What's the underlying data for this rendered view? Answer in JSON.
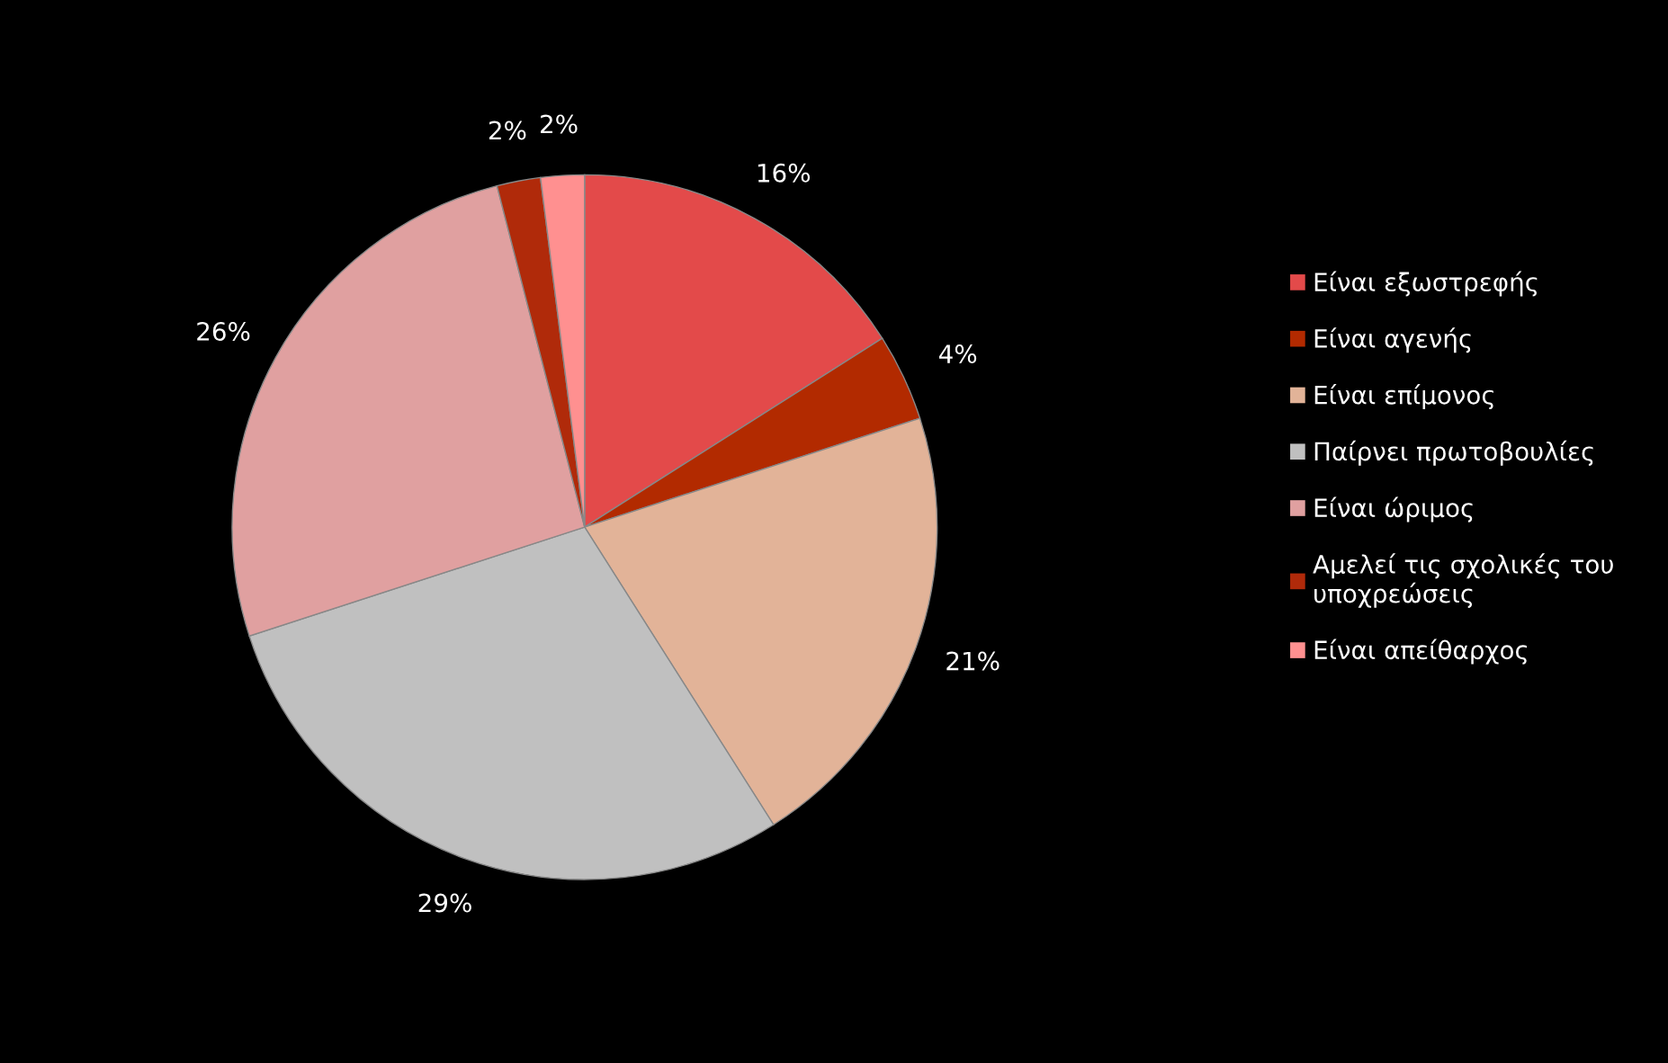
{
  "chart_data": {
    "type": "pie",
    "categories": [
      "Είναι εξωστρεφής",
      "Είναι αγενής",
      "Είναι επίμονος",
      "Παίρνει πρωτοβουλίες",
      "Είναι ώριμος",
      "Αμελεί τις σχολικές του\nυποχρεώσεις",
      "Είναι απείθαρχος"
    ],
    "values": [
      16,
      4,
      21,
      29,
      26,
      2,
      2
    ],
    "colors": [
      "#e34a4a",
      "#b22a00",
      "#e2b398",
      "#c0c0c0",
      "#e0a0a0",
      "#b02a0a",
      "#ff9090"
    ],
    "value_labels": [
      "16%",
      "4%",
      "21%",
      "29%",
      "26%",
      "2%",
      "2%"
    ],
    "legend": "right"
  }
}
